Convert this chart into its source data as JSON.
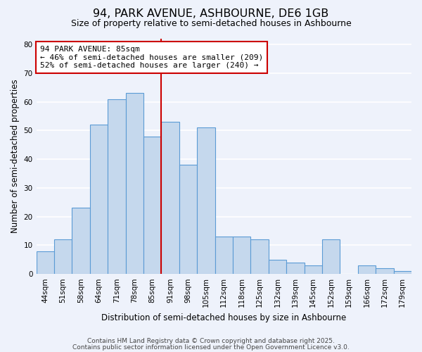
{
  "title": "94, PARK AVENUE, ASHBOURNE, DE6 1GB",
  "subtitle": "Size of property relative to semi-detached houses in Ashbourne",
  "xlabel": "Distribution of semi-detached houses by size in Ashbourne",
  "ylabel": "Number of semi-detached properties",
  "categories": [
    "44sqm",
    "51sqm",
    "58sqm",
    "64sqm",
    "71sqm",
    "78sqm",
    "85sqm",
    "91sqm",
    "98sqm",
    "105sqm",
    "112sqm",
    "118sqm",
    "125sqm",
    "132sqm",
    "139sqm",
    "145sqm",
    "152sqm",
    "159sqm",
    "166sqm",
    "172sqm",
    "179sqm"
  ],
  "values": [
    8,
    12,
    23,
    52,
    61,
    63,
    48,
    53,
    38,
    51,
    13,
    13,
    12,
    5,
    4,
    3,
    12,
    0,
    3,
    2,
    1
  ],
  "bar_color": "#c5d8ed",
  "bar_edge_color": "#5b9bd5",
  "annotation_header": "94 PARK AVENUE: 85sqm",
  "annotation_line1": "← 46% of semi-detached houses are smaller (209)",
  "annotation_line2": "52% of semi-detached houses are larger (240) →",
  "vline_color": "#cc0000",
  "vline_x": 6.5,
  "ylim": [
    0,
    82
  ],
  "yticks": [
    0,
    10,
    20,
    30,
    40,
    50,
    60,
    70,
    80
  ],
  "bg_color": "#eef2fb",
  "grid_color": "#ffffff",
  "footer1": "Contains HM Land Registry data © Crown copyright and database right 2025.",
  "footer2": "Contains public sector information licensed under the Open Government Licence v3.0.",
  "title_fontsize": 11.5,
  "subtitle_fontsize": 9,
  "axis_label_fontsize": 8.5,
  "tick_fontsize": 7.5,
  "annotation_fontsize": 8
}
